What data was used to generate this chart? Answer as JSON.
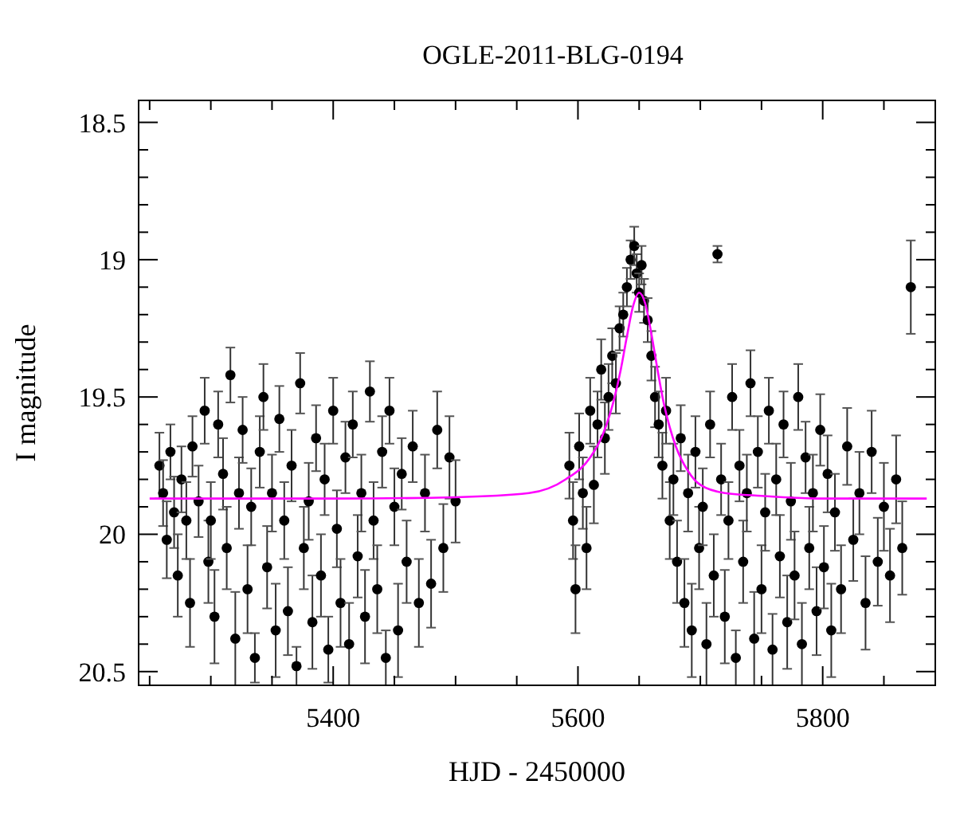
{
  "chart_data": {
    "type": "scatter",
    "title": "OGLE-2011-BLG-0194",
    "xlabel": "HJD - 2450000",
    "ylabel": "I magnitude",
    "xlim": [
      5241,
      5892
    ],
    "ylim": [
      20.55,
      18.42
    ],
    "xticks": [
      {
        "value": 5250,
        "label": null
      },
      {
        "value": 5300,
        "label": null
      },
      {
        "value": 5350,
        "label": null
      },
      5400,
      {
        "value": 5450,
        "label": null
      },
      {
        "value": 5500,
        "label": null
      },
      {
        "value": 5550,
        "label": null
      },
      5600,
      {
        "value": 5650,
        "label": null
      },
      {
        "value": 5700,
        "label": null
      },
      {
        "value": 5750,
        "label": null
      },
      5800,
      {
        "value": 5850,
        "label": null
      }
    ],
    "yticks": [
      {
        "value": 20.5,
        "label": "20.5"
      },
      {
        "value": 20.4,
        "label": null
      },
      {
        "value": 20.3,
        "label": null
      },
      {
        "value": 20.2,
        "label": null
      },
      {
        "value": 20.1,
        "label": null
      },
      20,
      {
        "value": 19.9,
        "label": null
      },
      {
        "value": 19.8,
        "label": null
      },
      {
        "value": 19.7,
        "label": null
      },
      {
        "value": 19.6,
        "label": null
      },
      19.5,
      {
        "value": 19.4,
        "label": null
      },
      {
        "value": 19.3,
        "label": null
      },
      {
        "value": 19.2,
        "label": null
      },
      {
        "value": 19.1,
        "label": null
      },
      19,
      {
        "value": 18.9,
        "label": null
      },
      {
        "value": 18.8,
        "label": null
      },
      {
        "value": 18.7,
        "label": null
      },
      {
        "value": 18.6,
        "label": null
      },
      18.5
    ],
    "marker": "circle",
    "grid": false,
    "series": [
      {
        "color": "#000000",
        "x": [
          5258,
          5261,
          5264,
          5267,
          5270,
          5273,
          5276,
          5280,
          5283,
          5285,
          5290,
          5295,
          5298,
          5300,
          5303,
          5306,
          5310,
          5313,
          5316,
          5320,
          5323,
          5326,
          5330,
          5333,
          5336,
          5340,
          5343,
          5346,
          5350,
          5353,
          5356,
          5360,
          5363,
          5366,
          5370,
          5373,
          5376,
          5380,
          5383,
          5386,
          5390,
          5393,
          5396,
          5400,
          5403,
          5406,
          5410,
          5413,
          5416,
          5420,
          5423,
          5426,
          5430,
          5433,
          5436,
          5440,
          5443,
          5446,
          5450,
          5453,
          5456,
          5460,
          5465,
          5470,
          5475,
          5480,
          5485,
          5490,
          5495,
          5500,
          5593,
          5596,
          5598,
          5601,
          5604,
          5607,
          5610,
          5613,
          5616,
          5619,
          5622,
          5625,
          5628,
          5631,
          5634,
          5637,
          5640,
          5643,
          5646,
          5648,
          5650,
          5652,
          5654,
          5657,
          5660,
          5663,
          5666,
          5669,
          5672,
          5675,
          5678,
          5681,
          5684,
          5687,
          5690,
          5693,
          5696,
          5699,
          5702,
          5705,
          5708,
          5711,
          5714,
          5717,
          5720,
          5723,
          5726,
          5729,
          5732,
          5735,
          5738,
          5741,
          5744,
          5747,
          5750,
          5753,
          5756,
          5759,
          5762,
          5765,
          5768,
          5771,
          5774,
          5777,
          5780,
          5783,
          5786,
          5789,
          5792,
          5795,
          5798,
          5801,
          5804,
          5807,
          5810,
          5815,
          5820,
          5825,
          5830,
          5835,
          5840,
          5845,
          5850,
          5855,
          5860,
          5865,
          5872
        ],
        "values": [
          19.75,
          19.85,
          20.02,
          19.7,
          19.92,
          20.15,
          19.8,
          19.95,
          20.25,
          19.68,
          19.88,
          19.55,
          20.1,
          19.95,
          20.3,
          19.6,
          19.78,
          20.05,
          19.42,
          20.38,
          19.85,
          19.62,
          20.2,
          19.9,
          20.45,
          19.7,
          19.5,
          20.12,
          19.85,
          20.35,
          19.58,
          19.95,
          20.28,
          19.75,
          20.48,
          19.45,
          20.05,
          19.88,
          20.32,
          19.65,
          20.15,
          19.8,
          20.42,
          19.55,
          19.98,
          20.25,
          19.72,
          20.4,
          19.6,
          20.08,
          19.85,
          20.3,
          19.48,
          19.95,
          20.2,
          19.7,
          20.45,
          19.55,
          19.9,
          20.35,
          19.78,
          20.1,
          19.68,
          20.25,
          19.85,
          20.18,
          19.62,
          20.05,
          19.72,
          19.88,
          19.75,
          19.95,
          20.2,
          19.68,
          19.85,
          20.05,
          19.55,
          19.82,
          19.6,
          19.4,
          19.65,
          19.5,
          19.35,
          19.45,
          19.25,
          19.2,
          19.1,
          19,
          18.95,
          19.05,
          19.12,
          19.02,
          19.15,
          19.22,
          19.35,
          19.5,
          19.6,
          19.75,
          19.55,
          19.95,
          19.8,
          20.1,
          19.65,
          20.25,
          19.85,
          20.35,
          19.7,
          20.05,
          19.9,
          20.4,
          19.6,
          20.15,
          18.98,
          19.8,
          20.3,
          19.95,
          19.5,
          20.45,
          19.75,
          20.1,
          19.85,
          19.45,
          20.38,
          19.7,
          20.2,
          19.92,
          19.55,
          20.42,
          19.8,
          20.08,
          19.6,
          20.32,
          19.88,
          20.15,
          19.5,
          20.4,
          19.72,
          20.05,
          19.85,
          20.28,
          19.62,
          20.12,
          19.78,
          20.35,
          19.92,
          20.2,
          19.68,
          20.02,
          19.85,
          20.25,
          19.7,
          20.1,
          19.9,
          20.15,
          19.8,
          20.05,
          19.1
        ],
        "errors": [
          0.12,
          0.12,
          0.14,
          0.1,
          0.13,
          0.15,
          0.12,
          0.14,
          0.16,
          0.11,
          0.13,
          0.12,
          0.15,
          0.14,
          0.17,
          0.12,
          0.13,
          0.15,
          0.1,
          0.17,
          0.13,
          0.12,
          0.16,
          0.14,
          0.09,
          0.13,
          0.12,
          0.15,
          0.14,
          0.17,
          0.12,
          0.14,
          0.16,
          0.13,
          0.07,
          0.11,
          0.15,
          0.14,
          0.17,
          0.12,
          0.15,
          0.13,
          0.12,
          0.12,
          0.14,
          0.16,
          0.13,
          0.15,
          0.12,
          0.15,
          0.14,
          0.17,
          0.11,
          0.14,
          0.16,
          0.13,
          0.1,
          0.12,
          0.14,
          0.17,
          0.13,
          0.15,
          0.13,
          0.16,
          0.14,
          0.16,
          0.14,
          0.16,
          0.15,
          0.15,
          0.12,
          0.14,
          0.16,
          0.12,
          0.13,
          0.15,
          0.12,
          0.14,
          0.12,
          0.11,
          0.13,
          0.12,
          0.1,
          0.11,
          0.08,
          0.08,
          0.07,
          0.07,
          0.07,
          0.07,
          0.07,
          0.07,
          0.08,
          0.08,
          0.09,
          0.11,
          0.12,
          0.12,
          0.12,
          0.14,
          0.13,
          0.15,
          0.12,
          0.16,
          0.14,
          0.17,
          0.13,
          0.15,
          0.14,
          0.15,
          0.12,
          0.15,
          0.03,
          0.13,
          0.17,
          0.14,
          0.12,
          0.1,
          0.13,
          0.15,
          0.14,
          0.12,
          0.17,
          0.13,
          0.16,
          0.14,
          0.12,
          0.13,
          0.13,
          0.15,
          0.12,
          0.17,
          0.14,
          0.16,
          0.12,
          0.15,
          0.13,
          0.15,
          0.14,
          0.16,
          0.13,
          0.15,
          0.14,
          0.17,
          0.14,
          0.16,
          0.14,
          0.15,
          0.15,
          0.17,
          0.15,
          0.16,
          0.16,
          0.17,
          0.16,
          0.17,
          0.17
        ]
      },
      {
        "type": "line",
        "color": "#ff00ff",
        "marker": "none",
        "x": [
          5250,
          5400,
          5500,
          5560,
          5590,
          5610,
          5620,
          5630,
          5635,
          5640,
          5645,
          5650,
          5655,
          5660,
          5665,
          5670,
          5675,
          5680,
          5690,
          5700,
          5720,
          5750,
          5800,
          5885
        ],
        "values": [
          19.87,
          19.87,
          19.865,
          19.85,
          19.8,
          19.72,
          19.64,
          19.5,
          19.4,
          19.28,
          19.17,
          19.12,
          19.16,
          19.27,
          19.4,
          19.52,
          19.61,
          19.68,
          19.77,
          19.82,
          19.85,
          19.86,
          19.87,
          19.87
        ]
      }
    ]
  }
}
